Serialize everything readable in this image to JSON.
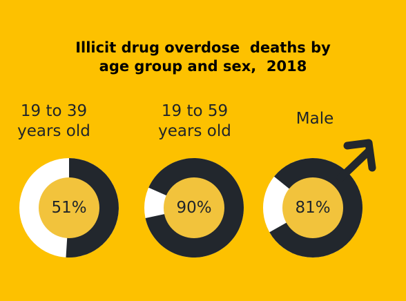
{
  "colors": {
    "background": "#fdc100",
    "dark": "#22272d",
    "light": "#ffffff",
    "center": "#f2c33c",
    "text": "#1f242a"
  },
  "chart_data": {
    "type": "pie",
    "title": "Illicit drug overdose  deaths by\nage group and sex,  2018",
    "items": [
      {
        "label": "19 to 39\nyears old",
        "value": 51,
        "display": "51%"
      },
      {
        "label": "19 to 59\nyears old",
        "value": 90,
        "display": "90%"
      },
      {
        "label": "Male",
        "value": 81,
        "display": "81%",
        "icon": "male-symbol-icon"
      }
    ]
  }
}
